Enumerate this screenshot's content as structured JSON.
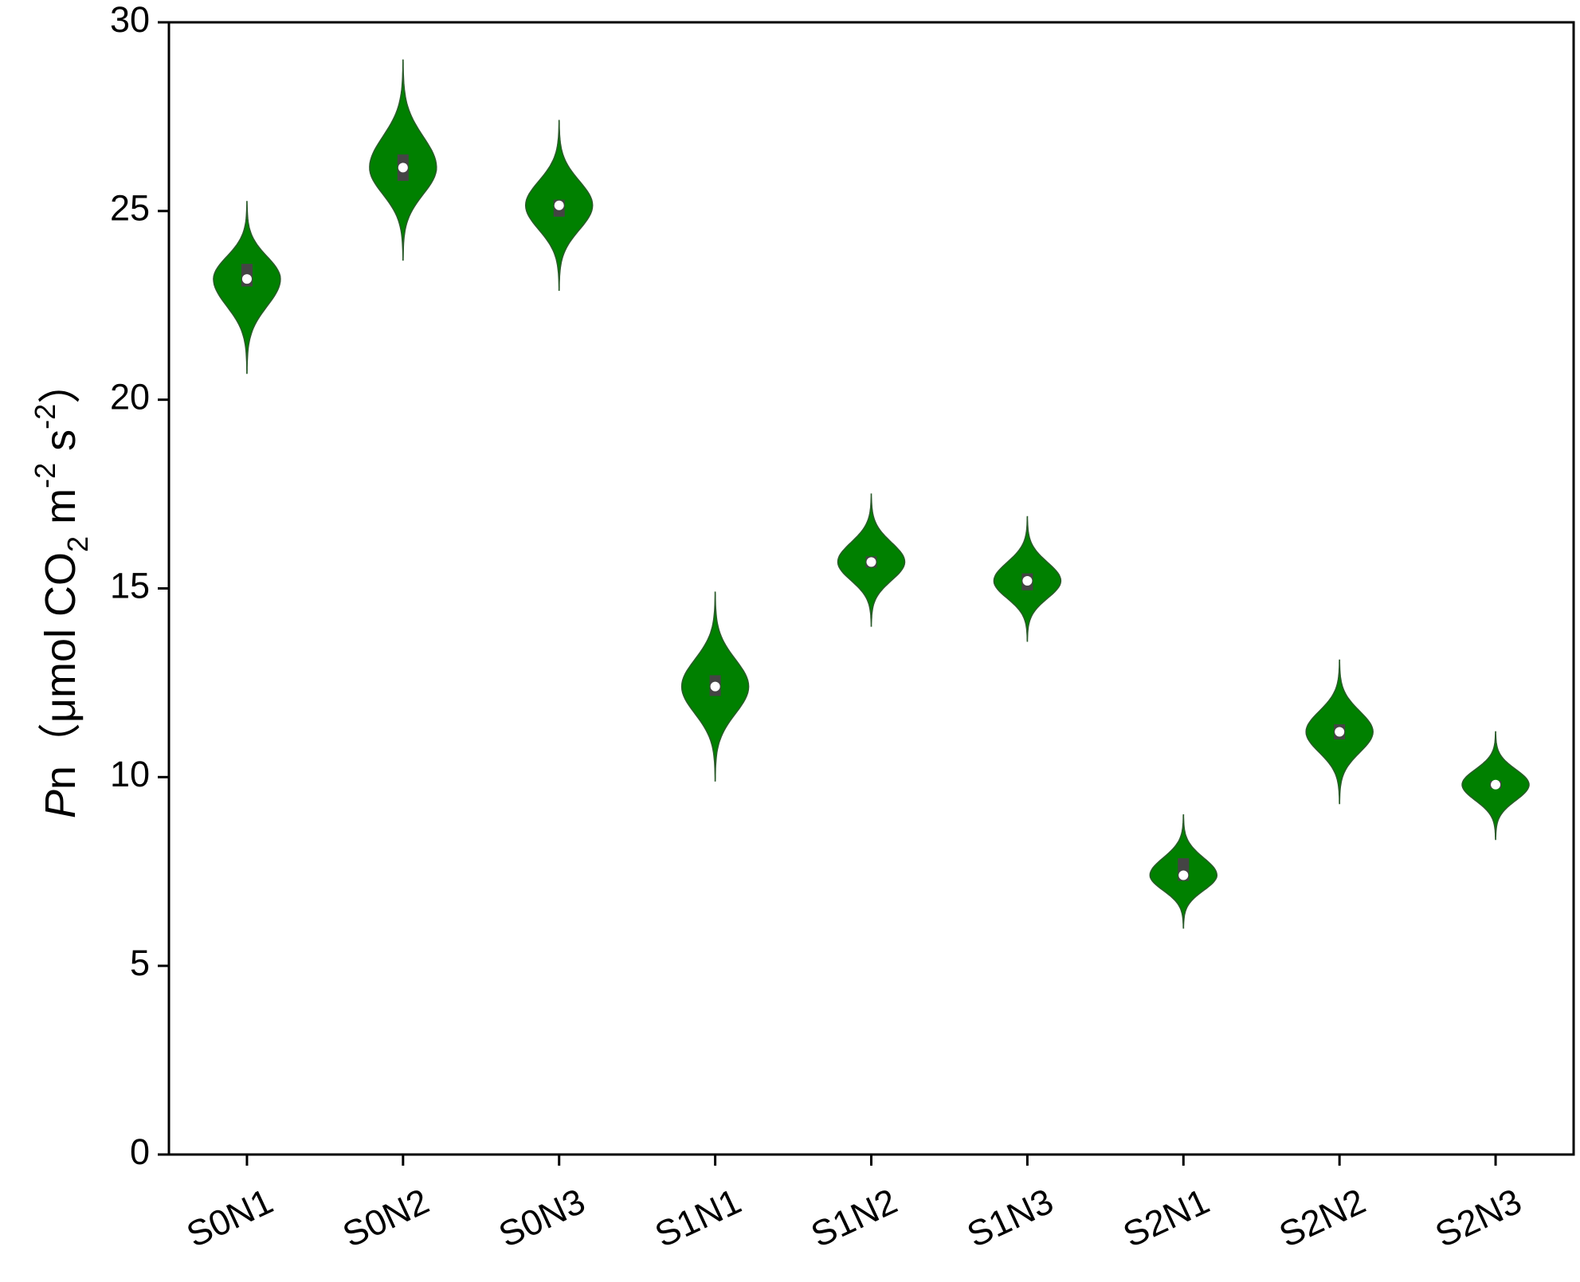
{
  "chart_data": {
    "type": "violin",
    "ylabel_parts": [
      "P",
      "n（μmol CO",
      "2",
      " m",
      "-2",
      " s",
      "-2",
      "）"
    ],
    "categories": [
      "S0N1",
      "S0N2",
      "S0N3",
      "S1N1",
      "S1N2",
      "S1N3",
      "S2N1",
      "S2N2",
      "S2N3"
    ],
    "min": [
      20.7,
      23.7,
      22.9,
      9.9,
      14.0,
      13.6,
      6.0,
      9.3,
      8.35
    ],
    "q1": [
      23.0,
      25.8,
      24.85,
      12.15,
      15.55,
      14.95,
      7.25,
      11.0,
      9.7
    ],
    "median": [
      23.2,
      26.15,
      25.15,
      12.4,
      15.7,
      15.2,
      7.4,
      11.2,
      9.8
    ],
    "q3": [
      23.6,
      26.5,
      25.3,
      12.7,
      15.85,
      15.4,
      7.85,
      11.4,
      9.9
    ],
    "max": [
      25.25,
      29.0,
      27.4,
      14.9,
      17.5,
      16.9,
      9.0,
      13.1,
      11.2
    ],
    "color": "#008000",
    "ylim": [
      0,
      30
    ],
    "yticks": [
      0,
      5,
      10,
      15,
      20,
      25,
      30
    ]
  }
}
